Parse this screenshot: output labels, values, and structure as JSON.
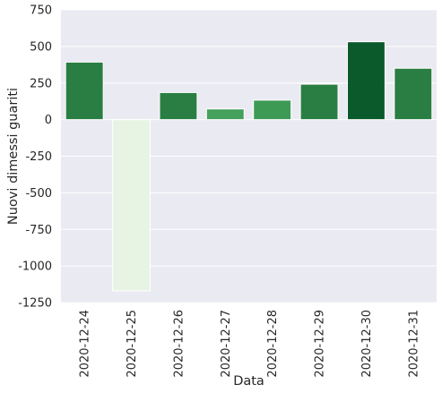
{
  "chart_data": {
    "type": "bar",
    "title": "",
    "xlabel": "Data",
    "ylabel": "Nuovi dimessi guariti",
    "categories": [
      "2020-12-24",
      "2020-12-25",
      "2020-12-26",
      "2020-12-27",
      "2020-12-28",
      "2020-12-29",
      "2020-12-30",
      "2020-12-31"
    ],
    "values": [
      393,
      -1170,
      185,
      73,
      133,
      242,
      532,
      351
    ],
    "colors": [
      "#2a7e43",
      "#e7f4e3",
      "#2a7e43",
      "#44a05a",
      "#3d9a55",
      "#2a7e43",
      "#0a5a2b",
      "#2a7e43"
    ],
    "ylim": [
      -1250,
      750
    ],
    "yticks": [
      750,
      500,
      250,
      0,
      -250,
      -500,
      -750,
      -1000,
      -1250
    ],
    "grid": true,
    "background": "#eaeaf2"
  }
}
